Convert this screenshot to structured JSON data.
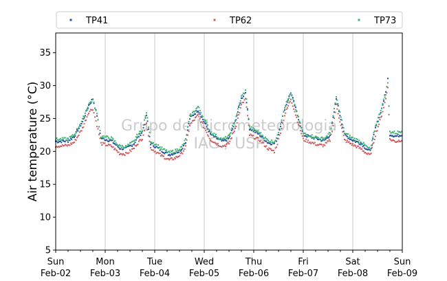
{
  "chart_data": {
    "type": "scatter",
    "ylabel": "Air temperature (°C)",
    "xlabel": "",
    "ylim": [
      5,
      38
    ],
    "yticks": [
      5,
      10,
      15,
      20,
      25,
      30,
      35
    ],
    "xlim": [
      "2025-02-02",
      "2025-02-09"
    ],
    "xtick_labels": [
      {
        "day": "Sun",
        "date": "Feb-02"
      },
      {
        "day": "Mon",
        "date": "Feb-03"
      },
      {
        "day": "Tue",
        "date": "Feb-04"
      },
      {
        "day": "Wed",
        "date": "Feb-05"
      },
      {
        "day": "Thu",
        "date": "Feb-06"
      },
      {
        "day": "Fri",
        "date": "Feb-07"
      },
      {
        "day": "Sat",
        "date": "Feb-08"
      },
      {
        "day": "Sun",
        "date": "Feb-09"
      }
    ],
    "grid": "vertical at day boundaries",
    "legend_position": "top, outside plot, horizontal",
    "watermark": [
      "Grupo de Micrometeorologia",
      "IAG / USP"
    ],
    "series": [
      {
        "name": "TP41",
        "color": "#1f4e9c",
        "x": [
          "2025-02-02 00:00",
          "2025-02-02 06:00",
          "2025-02-02 09:00",
          "2025-02-02 13:00",
          "2025-02-02 16:00",
          "2025-02-02 18:00",
          "2025-02-02 20:00",
          "2025-02-02 22:00",
          "2025-02-03 03:00",
          "2025-02-03 07:00",
          "2025-02-03 10:00",
          "2025-02-03 12:00",
          "2025-02-03 14:00",
          "2025-02-03 15:00",
          "2025-02-03 18:00",
          "2025-02-03 20:00",
          "2025-02-03 22:00",
          "2025-02-04 03:00",
          "2025-02-04 07:00",
          "2025-02-04 10:00",
          "2025-02-04 13:00",
          "2025-02-04 15:00",
          "2025-02-04 17:00",
          "2025-02-04 21:00",
          "2025-02-05 03:00",
          "2025-02-05 07:00",
          "2025-02-05 09:00",
          "2025-02-05 12:00",
          "2025-02-05 15:00",
          "2025-02-05 18:00",
          "2025-02-05 20:00",
          "2025-02-05 22:00",
          "2025-02-06 03:00",
          "2025-02-06 07:00",
          "2025-02-06 10:00",
          "2025-02-06 11:30",
          "2025-02-06 13:00",
          "2025-02-06 15:00",
          "2025-02-06 18:00",
          "2025-02-07 00:00",
          "2025-02-07 07:00",
          "2025-02-07 10:00",
          "2025-02-07 13:00",
          "2025-02-07 14:30",
          "2025-02-07 16:00",
          "2025-02-07 20:00",
          "2025-02-08 00:00",
          "2025-02-08 04:00",
          "2025-02-08 07:00",
          "2025-02-08 08:30",
          "2025-02-08 11:00",
          "2025-02-08 14:00",
          "2025-02-08 16:00",
          "2025-02-08 17:00",
          "2025-02-08 18:00",
          "2025-02-08 21:00",
          "2025-02-09 00:00"
        ],
        "y": [
          21.5,
          21.6,
          22.3,
          24.5,
          27.0,
          28.0,
          25.5,
          22.0,
          21.6,
          20.5,
          20.4,
          20.8,
          21.2,
          21.8,
          23.0,
          25.5,
          21.2,
          20.2,
          19.5,
          19.8,
          20.3,
          21.5,
          25.0,
          26.3,
          22.6,
          21.8,
          21.5,
          22.0,
          24.5,
          28.0,
          29.0,
          23.5,
          22.5,
          21.3,
          21.2,
          22.0,
          24.0,
          26.5,
          29.0,
          22.5,
          21.9,
          21.6,
          22.5,
          25.0,
          28.0,
          22.5,
          21.7,
          21.2,
          20.3,
          20.0,
          23.5,
          26.5,
          29.0,
          31.0,
          22.6,
          22.3,
          22.6
        ]
      },
      {
        "name": "TP62",
        "color": "#cd5c5c",
        "x": [
          "2025-02-02 00:00",
          "2025-02-02 06:00",
          "2025-02-02 09:00",
          "2025-02-02 13:00",
          "2025-02-02 16:00",
          "2025-02-02 18:00",
          "2025-02-02 20:00",
          "2025-02-02 22:00",
          "2025-02-03 03:00",
          "2025-02-03 07:00",
          "2025-02-03 10:00",
          "2025-02-03 12:00",
          "2025-02-03 14:00",
          "2025-02-03 15:00",
          "2025-02-03 18:00",
          "2025-02-03 20:00",
          "2025-02-03 22:00",
          "2025-02-04 03:00",
          "2025-02-04 07:00",
          "2025-02-04 10:00",
          "2025-02-04 13:00",
          "2025-02-04 15:00",
          "2025-02-04 17:00",
          "2025-02-04 21:00",
          "2025-02-05 03:00",
          "2025-02-05 07:00",
          "2025-02-05 09:00",
          "2025-02-05 12:00",
          "2025-02-05 15:00",
          "2025-02-05 18:00",
          "2025-02-05 20:00",
          "2025-02-05 22:00",
          "2025-02-06 03:00",
          "2025-02-06 07:00",
          "2025-02-06 10:00",
          "2025-02-06 11:30",
          "2025-02-06 13:00",
          "2025-02-06 15:00",
          "2025-02-06 18:00",
          "2025-02-07 00:00",
          "2025-02-07 07:00",
          "2025-02-07 10:00",
          "2025-02-07 13:00",
          "2025-02-07 14:30",
          "2025-02-07 16:00",
          "2025-02-07 20:00",
          "2025-02-08 00:00",
          "2025-02-08 04:00",
          "2025-02-08 07:00",
          "2025-02-08 08:30",
          "2025-02-08 11:00",
          "2025-02-08 14:00",
          "2025-02-08 16:00",
          "2025-02-08 17:00",
          "2025-02-08 18:00",
          "2025-02-08 21:00",
          "2025-02-09 00:00"
        ],
        "y": [
          20.8,
          20.9,
          21.4,
          23.5,
          26.0,
          26.5,
          24.0,
          21.2,
          20.8,
          19.7,
          19.6,
          20.0,
          20.5,
          21.0,
          22.0,
          24.5,
          20.5,
          19.4,
          18.7,
          19.0,
          19.6,
          20.7,
          24.0,
          25.5,
          21.8,
          21.0,
          20.8,
          21.2,
          23.5,
          27.0,
          28.0,
          22.5,
          21.7,
          20.4,
          20.0,
          21.2,
          23.0,
          25.5,
          28.0,
          21.8,
          21.0,
          20.9,
          21.7,
          24.0,
          27.0,
          21.7,
          21.0,
          20.4,
          19.6,
          19.4,
          22.5,
          25.5,
          28.0,
          29.8,
          21.8,
          21.5,
          21.8
        ]
      },
      {
        "name": "TP73",
        "color": "#3cb371",
        "x": [
          "2025-02-02 00:00",
          "2025-02-02 06:00",
          "2025-02-02 09:00",
          "2025-02-02 13:00",
          "2025-02-02 16:00",
          "2025-02-02 18:00",
          "2025-02-02 20:00",
          "2025-02-02 22:00",
          "2025-02-03 03:00",
          "2025-02-03 07:00",
          "2025-02-03 10:00",
          "2025-02-03 12:00",
          "2025-02-03 14:00",
          "2025-02-03 15:00",
          "2025-02-03 18:00",
          "2025-02-03 20:00",
          "2025-02-03 22:00",
          "2025-02-04 03:00",
          "2025-02-04 07:00",
          "2025-02-04 10:00",
          "2025-02-04 13:00",
          "2025-02-04 15:00",
          "2025-02-04 17:00",
          "2025-02-04 21:00",
          "2025-02-05 03:00",
          "2025-02-05 07:00",
          "2025-02-05 09:00",
          "2025-02-05 12:00",
          "2025-02-05 15:00",
          "2025-02-05 18:00",
          "2025-02-05 20:00",
          "2025-02-05 22:00",
          "2025-02-06 03:00",
          "2025-02-06 07:00",
          "2025-02-06 10:00",
          "2025-02-06 11:30",
          "2025-02-06 13:00",
          "2025-02-06 15:00",
          "2025-02-06 18:00",
          "2025-02-07 00:00",
          "2025-02-07 07:00",
          "2025-02-07 10:00",
          "2025-02-07 13:00",
          "2025-02-07 14:30",
          "2025-02-07 16:00",
          "2025-02-07 20:00",
          "2025-02-08 00:00",
          "2025-02-08 04:00",
          "2025-02-08 07:00",
          "2025-02-08 08:30",
          "2025-02-08 11:00",
          "2025-02-08 14:00",
          "2025-02-08 16:00",
          "2025-02-08 17:00",
          "2025-02-08 18:00",
          "2025-02-08 21:00",
          "2025-02-09 00:00"
        ],
        "y": [
          21.8,
          21.9,
          22.5,
          24.8,
          27.2,
          27.8,
          25.6,
          22.3,
          22.0,
          20.8,
          20.7,
          21.1,
          21.5,
          22.2,
          23.3,
          26.0,
          21.6,
          20.5,
          19.8,
          20.1,
          20.6,
          21.8,
          25.3,
          26.8,
          23.0,
          22.1,
          21.8,
          22.3,
          24.8,
          28.3,
          29.2,
          23.7,
          22.8,
          21.6,
          21.5,
          22.3,
          24.3,
          26.8,
          28.8,
          22.7,
          22.1,
          21.9,
          22.8,
          25.3,
          28.3,
          22.8,
          22.0,
          21.5,
          20.6,
          20.3,
          23.8,
          26.7,
          28.8,
          30.5,
          23.0,
          22.8,
          23.2
        ]
      }
    ]
  }
}
